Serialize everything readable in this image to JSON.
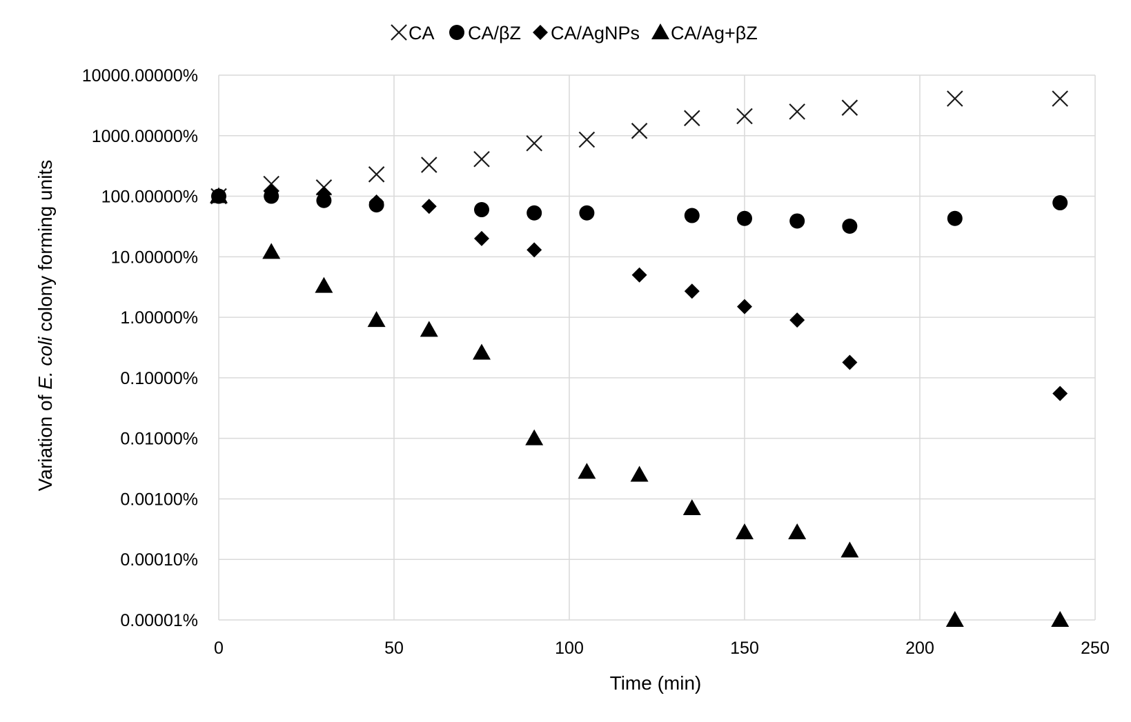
{
  "chart_data": {
    "type": "scatter",
    "title": "",
    "xlabel": "Time (min)",
    "ylabel": {
      "before": "Variation of ",
      "italic": "E. coli",
      "after": " colony forming units"
    },
    "y_scale": "log",
    "xlim": [
      0,
      250
    ],
    "ylim": [
      1e-05,
      10000
    ],
    "x_ticks": [
      "0",
      "50",
      "100",
      "150",
      "200",
      "250"
    ],
    "y_ticks": [
      "0.00001%",
      "0.00010%",
      "0.00100%",
      "0.01000%",
      "0.10000%",
      "1.00000%",
      "10.00000%",
      "100.00000%",
      "1000.00000%",
      "10000.00000%"
    ],
    "grid": true,
    "legend_position": "top-center",
    "series": [
      {
        "name": "CA",
        "marker": "x",
        "points": [
          [
            0,
            100
          ],
          [
            15,
            160
          ],
          [
            30,
            140
          ],
          [
            45,
            230
          ],
          [
            60,
            330
          ],
          [
            75,
            410
          ],
          [
            90,
            750
          ],
          [
            105,
            860
          ],
          [
            120,
            1200
          ],
          [
            135,
            1950
          ],
          [
            150,
            2100
          ],
          [
            165,
            2500
          ],
          [
            180,
            2900
          ],
          [
            210,
            4100
          ],
          [
            240,
            4100
          ]
        ]
      },
      {
        "name": "CA/βZ",
        "marker": "circle",
        "points": [
          [
            0,
            100
          ],
          [
            15,
            100
          ],
          [
            30,
            85
          ],
          [
            45,
            72
          ],
          [
            75,
            60
          ],
          [
            90,
            53
          ],
          [
            105,
            53
          ],
          [
            135,
            48
          ],
          [
            150,
            43
          ],
          [
            165,
            39
          ],
          [
            180,
            32
          ],
          [
            210,
            43
          ],
          [
            240,
            78
          ]
        ]
      },
      {
        "name": "CA/AgNPs",
        "marker": "diamond",
        "points": [
          [
            0,
            100
          ],
          [
            15,
            120
          ],
          [
            30,
            110
          ],
          [
            45,
            80
          ],
          [
            60,
            68
          ],
          [
            75,
            20
          ],
          [
            90,
            13
          ],
          [
            120,
            5
          ],
          [
            135,
            2.7
          ],
          [
            150,
            1.5
          ],
          [
            165,
            0.9
          ],
          [
            180,
            0.18
          ],
          [
            240,
            0.055
          ]
        ]
      },
      {
        "name": "CA/Ag+βZ",
        "marker": "triangle",
        "points": [
          [
            0,
            100
          ],
          [
            15,
            12
          ],
          [
            30,
            3.3
          ],
          [
            45,
            0.9
          ],
          [
            60,
            0.62
          ],
          [
            75,
            0.26
          ],
          [
            90,
            0.01
          ],
          [
            105,
            0.0028
          ],
          [
            120,
            0.0025
          ],
          [
            135,
            0.0007
          ],
          [
            150,
            0.00028
          ],
          [
            165,
            0.00028
          ],
          [
            180,
            0.00014
          ],
          [
            210,
            1e-05
          ],
          [
            240,
            1e-05
          ]
        ]
      }
    ]
  }
}
